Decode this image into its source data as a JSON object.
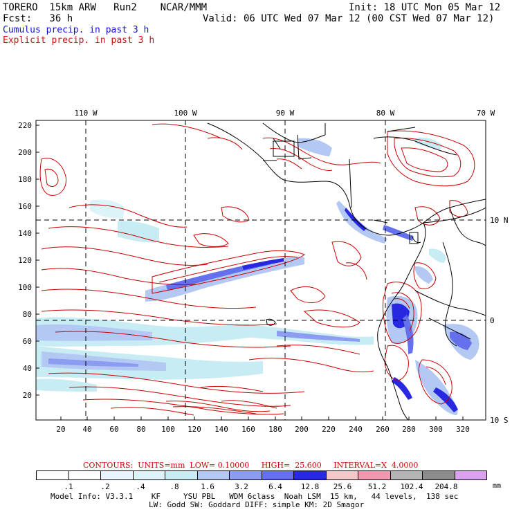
{
  "header": {
    "model": "TORERO  15km ARW   Run2    NCAR/MMM",
    "init": "Init: 18 UTC Mon 05 Mar 12",
    "fcst": "Fcst:   36 h",
    "valid": "Valid: 06 UTC Wed 07 Mar 12 (00 CST Wed 07 Mar 12)",
    "legend_cumulus": "Cumulus precip. in past 3 h",
    "legend_explicit": "Explicit precip. in past 3 h",
    "cumulus_color": "#0000cc",
    "explicit_color": "#cc0000"
  },
  "map": {
    "y_ticks": [
      "220",
      "200",
      "180",
      "160",
      "140",
      "120",
      "100",
      "80",
      "60",
      "40",
      "20"
    ],
    "x_ticks": [
      "20",
      "40",
      "60",
      "80",
      "100",
      "120",
      "140",
      "160",
      "180",
      "200",
      "220",
      "240",
      "260",
      "280",
      "300",
      "320"
    ],
    "lon_labels": [
      "110 W",
      "100 W",
      "90 W",
      "80 W",
      "70 W"
    ],
    "lat_labels": [
      "10 N",
      "0",
      "10 S"
    ],
    "land_color": "#ffffff",
    "grid": "dashed"
  },
  "contour_info": {
    "text": "CONTOURS:  UNITS=mm  LOW= 0.10000     HIGH=  25.600     INTERVAL=X  4.0000"
  },
  "colorbar": {
    "colors": [
      "#ffffff",
      "#ffffff",
      "#e8f4ff",
      "#dcf3f8",
      "#c8ecf4",
      "#b4c8f4",
      "#8c9cf0",
      "#6470ec",
      "#2828e0",
      "#f4c8c8",
      "#f098b0",
      "#b4b4b4",
      "#8c8c8c",
      "#dca0f0"
    ],
    "labels": [
      ".1",
      ".2",
      ".4",
      ".8",
      "1.6",
      "3.2",
      "6.4",
      "12.8",
      "25.6",
      "51.2",
      "102.4",
      "204.8"
    ],
    "unit": "mm"
  },
  "model_info": {
    "line1": "Model Info: V3.3.1    KF     YSU PBL   WDM 6class  Noah LSM  15 km,   44 levels,  138 sec",
    "line2": "LW: Godd SW: Goddard DIFF: simple KM: 2D Smagor"
  }
}
